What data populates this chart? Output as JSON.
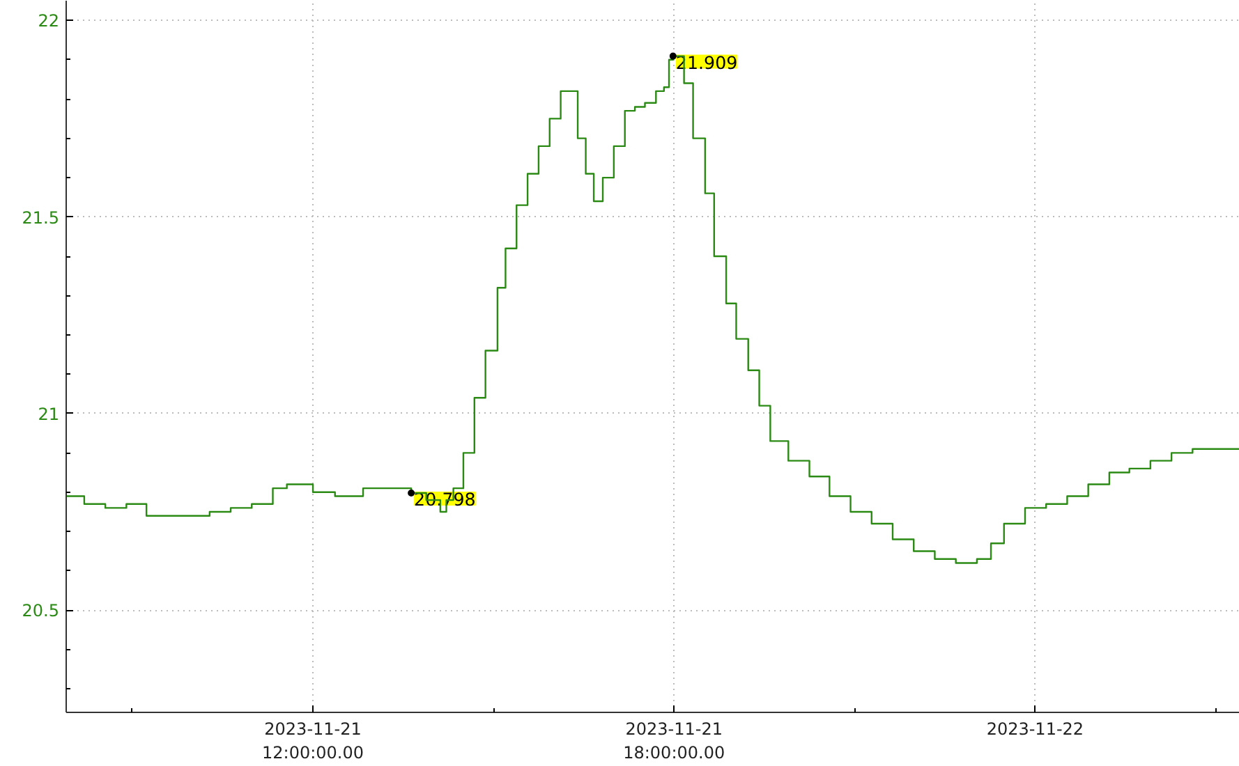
{
  "chart_data": {
    "type": "step",
    "color": "#2a8a14",
    "x": [
      "2023-11-21T07:54",
      "2023-11-21T08:12",
      "2023-11-21T08:33",
      "2023-11-21T08:54",
      "2023-11-21T09:14",
      "2023-11-21T09:35",
      "2023-11-21T09:56",
      "2023-11-21T10:17",
      "2023-11-21T10:38",
      "2023-11-21T10:59",
      "2023-11-21T11:20",
      "2023-11-21T11:34",
      "2023-11-21T12:00",
      "2023-11-21T12:22",
      "2023-11-21T12:50",
      "2023-11-21T13:18",
      "2023-11-21T13:38",
      "2023-11-21T13:53",
      "2023-11-21T14:07",
      "2023-11-21T14:13",
      "2023-11-21T14:20",
      "2023-11-21T14:30",
      "2023-11-21T14:41",
      "2023-11-21T14:52",
      "2023-11-21T15:04",
      "2023-11-21T15:12",
      "2023-11-21T15:23",
      "2023-11-21T15:34",
      "2023-11-21T15:45",
      "2023-11-21T15:56",
      "2023-11-21T16:07",
      "2023-11-21T16:16",
      "2023-11-21T16:24",
      "2023-11-21T16:32",
      "2023-11-21T16:40",
      "2023-11-21T16:49",
      "2023-11-21T17:00",
      "2023-11-21T17:11",
      "2023-11-21T17:21",
      "2023-11-21T17:31",
      "2023-11-21T17:42",
      "2023-11-21T17:50",
      "2023-11-21T17:55",
      "2023-11-21T17:59",
      "2023-11-21T18:10",
      "2023-11-21T18:19",
      "2023-11-21T18:31",
      "2023-11-21T18:40",
      "2023-11-21T18:52",
      "2023-11-21T19:02",
      "2023-11-21T19:14",
      "2023-11-21T19:25",
      "2023-11-21T19:36",
      "2023-11-21T19:54",
      "2023-11-21T20:15",
      "2023-11-21T20:35",
      "2023-11-21T20:56",
      "2023-11-21T21:17",
      "2023-11-21T21:38",
      "2023-11-21T21:59",
      "2023-11-21T22:20",
      "2023-11-21T22:41",
      "2023-11-21T23:02",
      "2023-11-21T23:16",
      "2023-11-21T23:29",
      "2023-11-21T23:50",
      "2023-11-22T00:11",
      "2023-11-22T00:32",
      "2023-11-22T00:53",
      "2023-11-22T01:14",
      "2023-11-22T01:34",
      "2023-11-22T01:55",
      "2023-11-22T02:16",
      "2023-11-22T02:37",
      "2023-11-22T02:58",
      "2023-11-22T03:24"
    ],
    "values": [
      20.79,
      20.77,
      20.76,
      20.77,
      20.74,
      20.74,
      20.74,
      20.75,
      20.76,
      20.77,
      20.81,
      20.82,
      20.8,
      20.79,
      20.81,
      20.81,
      20.798,
      20.78,
      20.75,
      20.78,
      20.81,
      20.9,
      21.04,
      21.16,
      21.32,
      21.42,
      21.53,
      21.61,
      21.68,
      21.75,
      21.82,
      21.82,
      21.7,
      21.61,
      21.54,
      21.6,
      21.68,
      21.77,
      21.78,
      21.79,
      21.82,
      21.83,
      21.9,
      21.909,
      21.84,
      21.7,
      21.56,
      21.4,
      21.28,
      21.19,
      21.11,
      21.02,
      20.93,
      20.88,
      20.84,
      20.79,
      20.75,
      20.72,
      20.68,
      20.65,
      20.63,
      20.62,
      20.63,
      20.67,
      20.72,
      20.76,
      20.77,
      20.79,
      20.82,
      20.85,
      20.86,
      20.88,
      20.9,
      20.91,
      20.91,
      20.91
    ],
    "xlim": [
      "2023-11-21T07:54",
      "2023-11-22T03:24"
    ],
    "ylim": [
      20.24,
      22.05
    ],
    "xticks": [
      {
        "value": "2023-11-21T09:00",
        "label": null
      },
      {
        "value": "2023-11-21T12:00",
        "label": "2023-11-21\n12:00:00.00"
      },
      {
        "value": "2023-11-21T15:00",
        "label": null
      },
      {
        "value": "2023-11-21T18:00",
        "label": "2023-11-21\n18:00:00.00"
      },
      {
        "value": "2023-11-21T21:00",
        "label": null
      },
      {
        "value": "2023-11-22T00:00",
        "label": "2023-11-22"
      },
      {
        "value": "2023-11-22T03:00",
        "label": null
      }
    ],
    "yticks": [
      {
        "value": 20.3,
        "label": null
      },
      {
        "value": 20.4,
        "label": null
      },
      20.5,
      {
        "value": 20.6,
        "label": null
      },
      {
        "value": 20.7,
        "label": null
      },
      {
        "value": 20.8,
        "label": null
      },
      {
        "value": 20.9,
        "label": null
      },
      21,
      {
        "value": 21.1,
        "label": null
      },
      {
        "value": 21.2,
        "label": null
      },
      {
        "value": 21.3,
        "label": null
      },
      {
        "value": 21.4,
        "label": null
      },
      21.5,
      {
        "value": 21.6,
        "label": null
      },
      {
        "value": 21.7,
        "label": null
      },
      {
        "value": 21.8,
        "label": null
      },
      {
        "value": 21.9,
        "label": null
      },
      22
    ],
    "grid": true,
    "marker": "none",
    "line_style": "solid",
    "annotations": [
      {
        "text": "20.798",
        "x": "2023-11-21T13:38",
        "y": 20.798
      },
      {
        "text": "21.909",
        "x": "2023-11-21T17:59",
        "y": 21.909
      }
    ]
  }
}
